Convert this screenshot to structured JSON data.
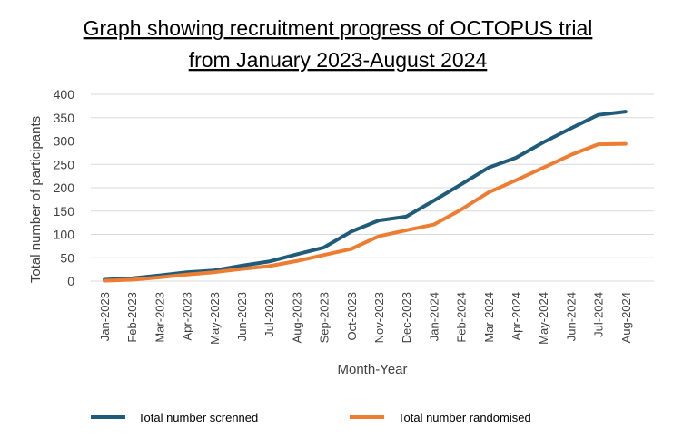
{
  "chart_data": {
    "type": "line",
    "title_lines": [
      "Graph showing recruitment progress of OCTOPUS trial",
      "from January 2023-August 2024"
    ],
    "xlabel": "Month-Year",
    "ylabel": "Total number of participants",
    "ylim": [
      0,
      400
    ],
    "yticks": [
      0,
      50,
      100,
      150,
      200,
      250,
      300,
      350,
      400
    ],
    "grid": true,
    "legend": "bottom",
    "categories": [
      "Jan-2023",
      "Feb-2023",
      "Mar-2023",
      "Apr-2023",
      "May-2023",
      "Jun-2023",
      "Jul-2023",
      "Aug-2023",
      "Sep-2023",
      "Oct-2023",
      "Nov-2023",
      "Dec-2023",
      "Jan-2024",
      "Feb-2024",
      "Mar-2024",
      "Apr-2024",
      "May-2024",
      "Jun-2024",
      "Jul-2024",
      "Aug-2024"
    ],
    "series": [
      {
        "name": "Total number screnned",
        "color": "#1f5c7a",
        "values": [
          3,
          6,
          12,
          19,
          23,
          33,
          42,
          57,
          72,
          106,
          130,
          138,
          172,
          207,
          243,
          264,
          297,
          327,
          356,
          363
        ]
      },
      {
        "name": "Total number randomised",
        "color": "#ed7d31",
        "values": [
          1,
          3,
          8,
          14,
          19,
          26,
          32,
          43,
          56,
          69,
          96,
          109,
          121,
          153,
          190,
          216,
          243,
          270,
          293,
          294
        ]
      }
    ]
  }
}
